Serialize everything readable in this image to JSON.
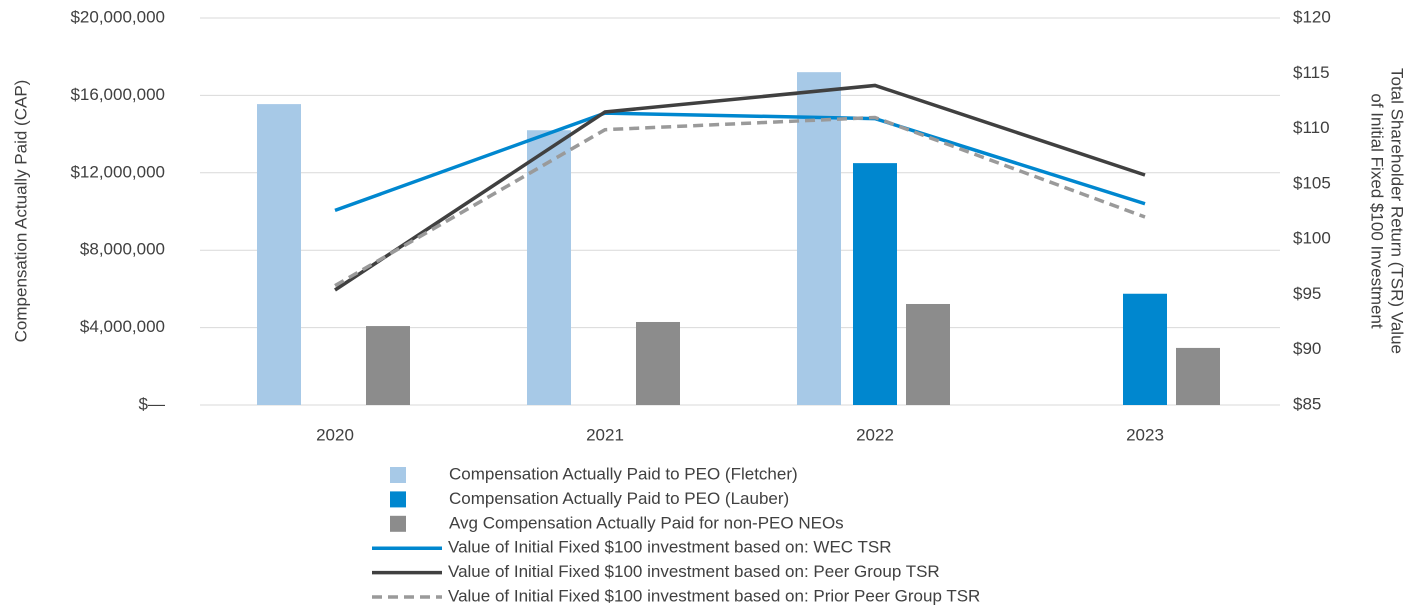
{
  "chart_data": {
    "type": "bar",
    "y_label": "Compensation Actually Paid (CAP)",
    "y2_label": [
      "Total Shareholder Return (TSR)  Value",
      "of Initial Fixed $100 Investment"
    ],
    "categories": [
      "2020",
      "2021",
      "2022",
      "2023"
    ],
    "ylim": [
      0,
      20000000
    ],
    "yticks": [
      {
        "value": 0,
        "label": "$—"
      },
      {
        "value": 4000000,
        "label": "$4,000,000"
      },
      {
        "value": 8000000,
        "label": "$8,000,000"
      },
      {
        "value": 12000000,
        "label": "$12,000,000"
      },
      {
        "value": 16000000,
        "label": "$16,000,000"
      },
      {
        "value": 20000000,
        "label": "$20,000,000"
      }
    ],
    "y2lim": [
      85,
      120
    ],
    "y2ticks": [
      {
        "value": 85,
        "label": "$85"
      },
      {
        "value": 90,
        "label": "$90"
      },
      {
        "value": 95,
        "label": "$95"
      },
      {
        "value": 100,
        "label": "$100"
      },
      {
        "value": 105,
        "label": "$105"
      },
      {
        "value": 110,
        "label": "$110"
      },
      {
        "value": 115,
        "label": "$115"
      },
      {
        "value": 120,
        "label": "$120"
      }
    ],
    "grid": true,
    "series": [
      {
        "name": "Compensation Actually Paid to PEO (Fletcher)",
        "color": "#a7c9e7",
        "type": "bar",
        "values": [
          15550000,
          14200000,
          17200000,
          null
        ]
      },
      {
        "name": "Compensation Actually Paid to PEO (Lauber)",
        "color": "#0087cf",
        "type": "bar",
        "values": [
          null,
          null,
          12500000,
          5750000
        ]
      },
      {
        "name": "Avg Compensation Actually Paid for non-PEO NEOs",
        "color": "#8c8c8c",
        "type": "bar",
        "values": [
          4080000,
          4290000,
          5220000,
          2950000
        ]
      },
      {
        "name": "Value of Initial Fixed $100 investment based on: WEC TSR",
        "color": "#0087cf",
        "type": "line",
        "axis": "y2",
        "values": [
          102.6,
          111.4,
          110.9,
          103.2
        ]
      },
      {
        "name": "Value of Initial Fixed $100 investment based on: Peer Group TSR",
        "color": "#404040",
        "type": "line",
        "axis": "y2",
        "values": [
          95.4,
          111.5,
          113.9,
          105.8
        ]
      },
      {
        "name": "Value of Initial Fixed $100 investment based on: Prior Peer Group TSR",
        "color": "#9a9a9a",
        "type": "line",
        "dashed": true,
        "axis": "y2",
        "values": [
          95.8,
          109.9,
          111.0,
          102.0
        ]
      }
    ]
  }
}
